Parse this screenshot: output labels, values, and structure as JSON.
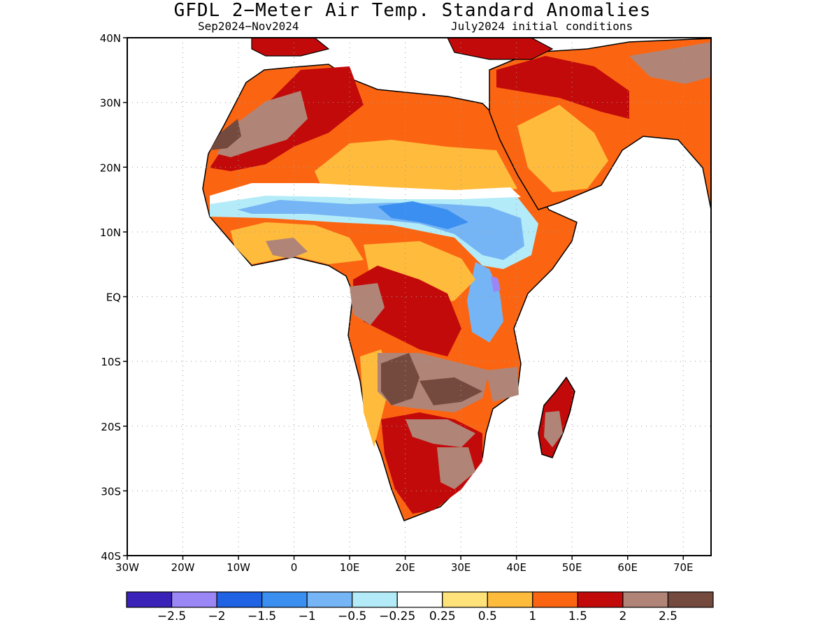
{
  "title": "GFDL 2−Meter Air Temp. Standard Anomalies",
  "period": "Sep2024−Nov2024",
  "initial_conditions": "July2024 initial conditions",
  "lat_labels": [
    {
      "lat": 40,
      "text": "40N"
    },
    {
      "lat": 30,
      "text": "30N"
    },
    {
      "lat": 20,
      "text": "20N"
    },
    {
      "lat": 10,
      "text": "10N"
    },
    {
      "lat": 0,
      "text": "EQ"
    },
    {
      "lat": -10,
      "text": "10S"
    },
    {
      "lat": -20,
      "text": "20S"
    },
    {
      "lat": -30,
      "text": "30S"
    },
    {
      "lat": -40,
      "text": "40S"
    }
  ],
  "lon_labels": [
    {
      "lon": -30,
      "text": "30W"
    },
    {
      "lon": -20,
      "text": "20W"
    },
    {
      "lon": -10,
      "text": "10W"
    },
    {
      "lon": 0,
      "text": "0"
    },
    {
      "lon": 10,
      "text": "10E"
    },
    {
      "lon": 20,
      "text": "20E"
    },
    {
      "lon": 30,
      "text": "30E"
    },
    {
      "lon": 40,
      "text": "40E"
    },
    {
      "lon": 50,
      "text": "50E"
    },
    {
      "lon": 60,
      "text": "60E"
    },
    {
      "lon": 70,
      "text": "70E"
    }
  ],
  "extent": {
    "lon": [
      -30,
      75
    ],
    "lat": [
      -40,
      40
    ]
  },
  "colorbar": {
    "colors": [
      "#3a22b8",
      "#9b86f5",
      "#1f62e3",
      "#3a8ff0",
      "#76b5f5",
      "#b3ecf8",
      "#ffffff",
      "#ffe27a",
      "#ffbb3c",
      "#fb6512",
      "#c30a0a",
      "#b08578",
      "#754a3e"
    ],
    "labels": [
      "−2.5",
      "−2",
      "−1.5",
      "−1",
      "−0.5",
      "−0.25",
      "0.25",
      "0.5",
      "1",
      "1.5",
      "2",
      "2.5"
    ]
  }
}
